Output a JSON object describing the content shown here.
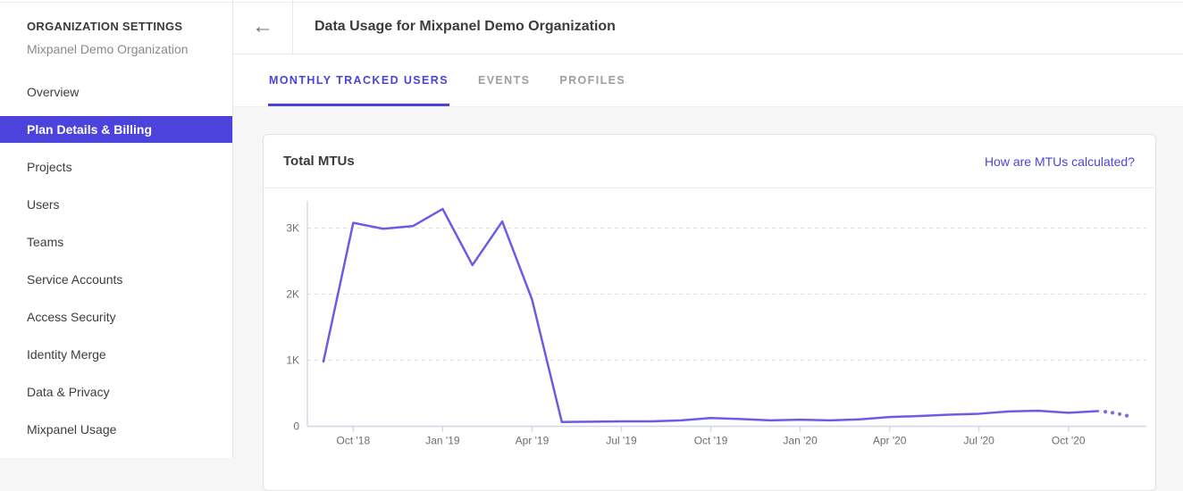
{
  "page": {
    "background": "#f6f6f6",
    "accent_color": "#4c43dc"
  },
  "sidebar": {
    "section_label": "ORGANIZATION SETTINGS",
    "org_name": "Mixpanel Demo Organization",
    "items": [
      {
        "label": "Overview",
        "selected": false
      },
      {
        "label": "Plan Details & Billing",
        "selected": true
      },
      {
        "label": "Projects",
        "selected": false
      },
      {
        "label": "Users",
        "selected": false
      },
      {
        "label": "Teams",
        "selected": false
      },
      {
        "label": "Service Accounts",
        "selected": false
      },
      {
        "label": "Access Security",
        "selected": false
      },
      {
        "label": "Identity Merge",
        "selected": false
      },
      {
        "label": "Data & Privacy",
        "selected": false
      },
      {
        "label": "Mixpanel Usage",
        "selected": false
      }
    ]
  },
  "header": {
    "back_icon": "←",
    "title": "Data Usage for Mixpanel Demo Organization"
  },
  "tabs": [
    {
      "label": "MONTHLY TRACKED USERS",
      "active": true
    },
    {
      "label": "EVENTS",
      "active": false
    },
    {
      "label": "PROFILES",
      "active": false
    }
  ],
  "card": {
    "title": "Total MTUs",
    "link_label": "How are MTUs calculated?"
  },
  "chart_data": {
    "type": "line",
    "title": "Total MTUs",
    "x": [
      "Sep '18",
      "Oct '18",
      "Nov '18",
      "Dec '18",
      "Jan '19",
      "Feb '19",
      "Mar '19",
      "Apr '19",
      "May '19",
      "Jun '19",
      "Jul '19",
      "Aug '19",
      "Sep '19",
      "Oct '19",
      "Nov '19",
      "Dec '19",
      "Jan '20",
      "Feb '20",
      "Mar '20",
      "Apr '20",
      "May '20",
      "Jun '20",
      "Jul '20",
      "Aug '20",
      "Sep '20",
      "Oct '20",
      "Nov '20"
    ],
    "values": [
      980,
      3080,
      2990,
      3030,
      3290,
      2440,
      3100,
      1920,
      65,
      70,
      75,
      75,
      90,
      125,
      110,
      90,
      100,
      90,
      105,
      140,
      155,
      175,
      190,
      225,
      235,
      205,
      230
    ],
    "projection_values": [
      220,
      205,
      185,
      160
    ],
    "xticks": [
      "Oct '18",
      "Jan '19",
      "Apr '19",
      "Jul '19",
      "Oct '19",
      "Jan '20",
      "Apr '20",
      "Jul '20",
      "Oct '20"
    ],
    "yticks": [
      {
        "label": "0",
        "value": 0
      },
      {
        "label": "1K",
        "value": 1000
      },
      {
        "label": "2K",
        "value": 2000
      },
      {
        "label": "3K",
        "value": 3000
      }
    ],
    "ylim": [
      0,
      3400
    ],
    "xlabel": "",
    "ylabel": "",
    "legend": "none",
    "grid": "horizontal-dashed",
    "line_color": "#6a5de4",
    "axis_color": "#d4d6e6",
    "grid_color": "#dedede",
    "tick_text_color": "#6e6e6e"
  }
}
